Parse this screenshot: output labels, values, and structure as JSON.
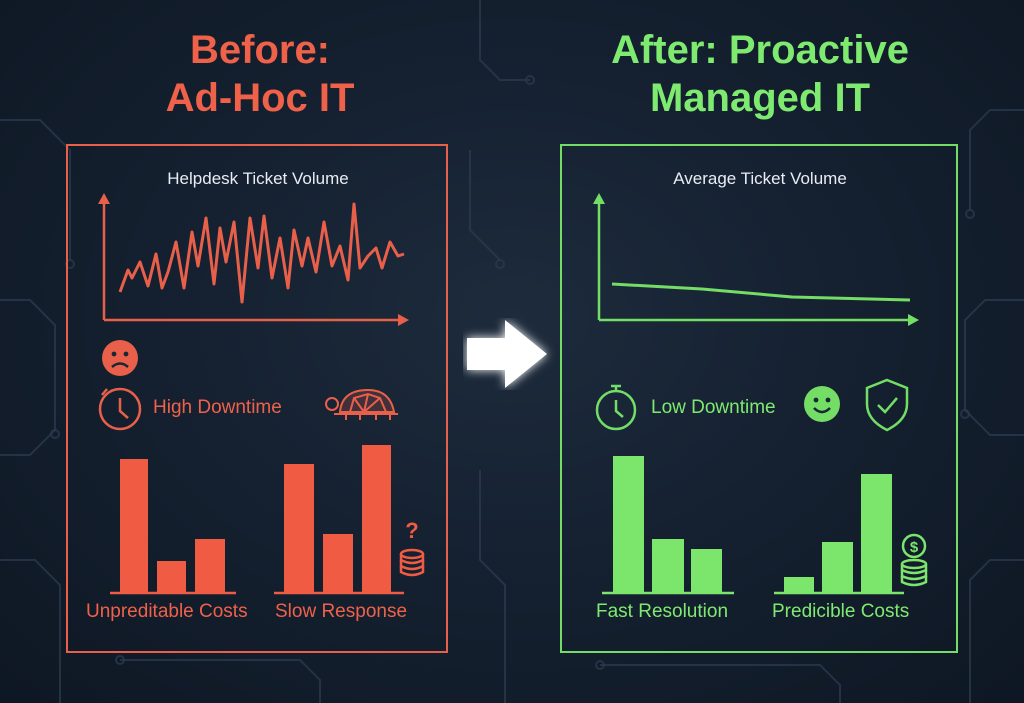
{
  "before": {
    "heading_line1": "Before:",
    "heading_line2": "Ad-Hoc IT",
    "chart_title": "Helpdesk Ticket Volume",
    "indicator_label": "High Downtime",
    "cost_label": "Unpreditable Costs",
    "response_label": "Slow Response",
    "icons": [
      "sad-face-icon",
      "clock-icon",
      "turtle-icon",
      "question-coins-icon"
    ],
    "color": "#f0614a"
  },
  "after": {
    "heading_line1": "After: Proactive",
    "heading_line2": "Managed IT",
    "chart_title": "Average Ticket Volume",
    "indicator_label": "Low Downtime",
    "resolution_label": "Fast Resolution",
    "cost_label": "Predicible Costs",
    "icons": [
      "stopwatch-icon",
      "smiley-face-icon",
      "shield-check-icon",
      "dollar-coins-icon"
    ],
    "color": "#7eea6f"
  },
  "arrow_icon": "right-arrow-icon"
}
